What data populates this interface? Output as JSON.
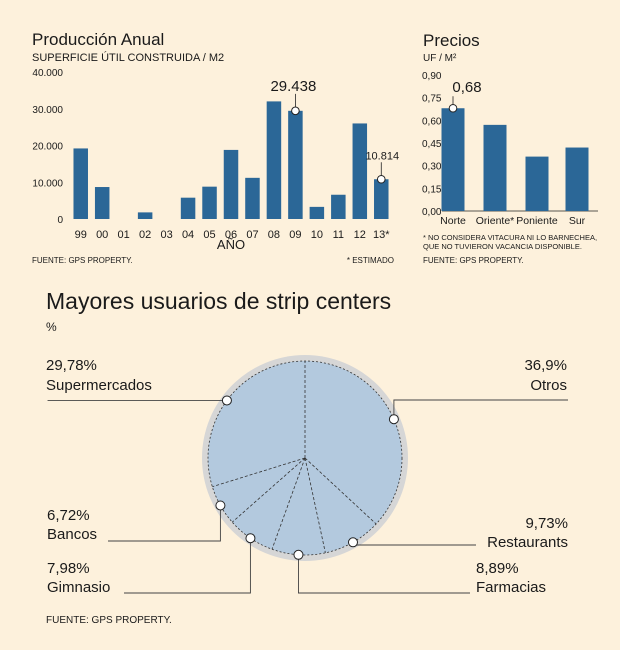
{
  "chart_data": [
    {
      "type": "bar",
      "title": "Producción Anual",
      "subtitle": "SUPERFICIE ÚTIL CONSTRUIDA / M2",
      "xlabel": "AÑO",
      "ylabel": "",
      "ylim": [
        0,
        40000
      ],
      "yticks": [
        "40.000",
        "30.000",
        "20.000",
        "10.000",
        "0"
      ],
      "categories": [
        "99",
        "00",
        "01",
        "02",
        "03",
        "04",
        "05",
        "06",
        "07",
        "08",
        "09",
        "10",
        "11",
        "12",
        "13*"
      ],
      "values": [
        19200,
        8700,
        0,
        1800,
        0,
        5800,
        8800,
        18800,
        11200,
        32000,
        29438,
        3300,
        6600,
        26000,
        10814
      ],
      "annotations": [
        {
          "category": "09",
          "label": "29.438"
        },
        {
          "category": "13*",
          "label": "10.814"
        }
      ],
      "source": "FUENTE: GPS PROPERTY.",
      "note": "* ESTIMADO",
      "color": "#2b6797"
    },
    {
      "type": "bar",
      "title": "Precios",
      "ylabel": "UF / M²",
      "ylim": [
        0,
        0.9
      ],
      "yticks": [
        "0,90",
        "0,75",
        "0,60",
        "0,45",
        "0,30",
        "0,15",
        "0,00"
      ],
      "categories": [
        "Norte",
        "Oriente*",
        "Poniente",
        "Sur"
      ],
      "values": [
        0.68,
        0.57,
        0.36,
        0.42
      ],
      "annotations": [
        {
          "category": "Norte",
          "label": "0,68"
        }
      ],
      "note_lines": [
        "* NO CONSIDERA VITACURA NI LO BARNECHEA,",
        "QUE NO TUVIERON VACANCIA DISPONIBLE."
      ],
      "source": "FUENTE: GPS PROPERTY.",
      "color": "#2b6797"
    },
    {
      "type": "pie",
      "title": "Mayores usuarios de strip centers",
      "unit": "%",
      "slices": [
        {
          "pct": "36,9%",
          "label": "Otros",
          "value": 36.9
        },
        {
          "pct": "9,73%",
          "label": "Restaurants",
          "value": 9.73
        },
        {
          "pct": "8,89%",
          "label": "Farmacias",
          "value": 8.89
        },
        {
          "pct": "7,98%",
          "label": "Gimnasio",
          "value": 7.98
        },
        {
          "pct": "6,72%",
          "label": "Bancos",
          "value": 6.72
        },
        {
          "pct": "29,78%",
          "label": "Supermercados",
          "value": 29.78
        }
      ],
      "source": "FUENTE: GPS PROPERTY.",
      "fill": "#b3c9de",
      "ring": "#d6d6d6"
    }
  ]
}
